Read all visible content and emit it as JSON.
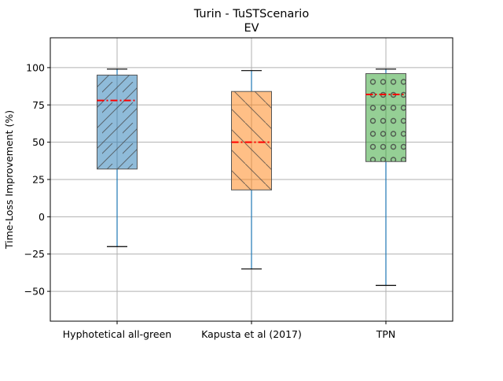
{
  "chart_data": {
    "type": "box",
    "title": "Turin - TuSTScenario",
    "subtitle": "EV",
    "xlabel": "",
    "ylabel": "Time-Loss Improvement (%)",
    "ylim": [
      -70,
      120
    ],
    "yticks": [
      -50,
      -25,
      0,
      25,
      50,
      75,
      100
    ],
    "grid": true,
    "categories": [
      "Hyphotetical all-green",
      "Kapusta et al (2017)",
      "TPN"
    ],
    "boxes": [
      {
        "name": "Hyphotetical all-green",
        "whisker_low": -20,
        "q1": 32,
        "median": 78,
        "q3": 95,
        "whisker_high": 99,
        "color": "#1f77b4",
        "pattern": "diagonal-forward"
      },
      {
        "name": "Kapusta et al (2017)",
        "whisker_low": -35,
        "q1": 18,
        "median": 50,
        "q3": 84,
        "whisker_high": 98,
        "color": "#ff7f0e",
        "pattern": "diagonal-back"
      },
      {
        "name": "TPN",
        "whisker_low": -46,
        "q1": 37,
        "median": 82,
        "q3": 96,
        "whisker_high": 99,
        "color": "#2ca02c",
        "pattern": "circles"
      }
    ],
    "median_color": "#ff0000",
    "whisker_color": "#1f77b4"
  }
}
